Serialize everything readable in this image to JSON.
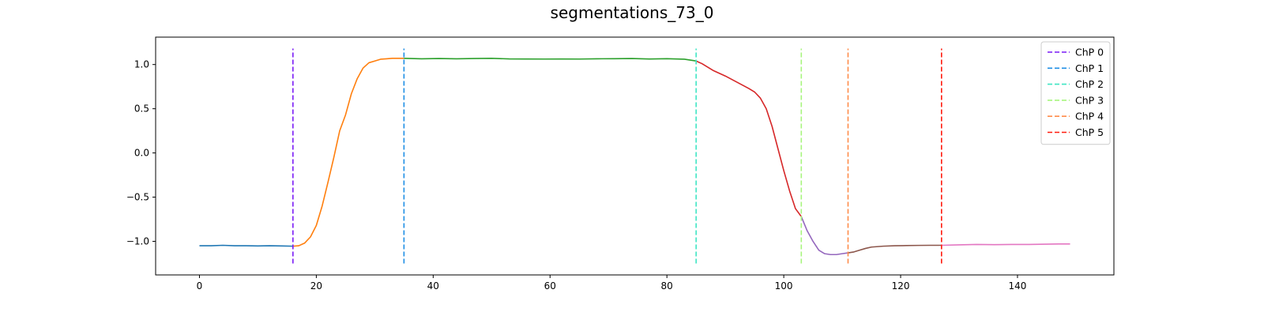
{
  "chart_data": {
    "type": "line",
    "title": "segmentations_73_0",
    "xlabel": "",
    "ylabel": "",
    "xlim": [
      -7.5,
      156.5
    ],
    "ylim": [
      -1.38,
      1.31
    ],
    "grid": false,
    "legend_position": "top-right",
    "x_ticks": [
      0,
      20,
      40,
      60,
      80,
      100,
      120,
      140
    ],
    "y_ticks": [
      -1.0,
      -0.5,
      0.0,
      0.5,
      1.0
    ],
    "y_tick_labels": [
      "−1.0",
      "−0.5",
      "0.0",
      "0.5",
      "1.0"
    ],
    "segments": [
      {
        "color": "#1f77b4",
        "points": [
          [
            0,
            -1.05
          ],
          [
            2,
            -1.05
          ],
          [
            4,
            -1.045
          ],
          [
            6,
            -1.05
          ],
          [
            8,
            -1.05
          ],
          [
            10,
            -1.052
          ],
          [
            12,
            -1.05
          ],
          [
            14,
            -1.052
          ],
          [
            16,
            -1.055
          ]
        ]
      },
      {
        "color": "#ff7f0e",
        "points": [
          [
            16,
            -1.055
          ],
          [
            17,
            -1.05
          ],
          [
            18,
            -1.02
          ],
          [
            19,
            -0.95
          ],
          [
            20,
            -0.82
          ],
          [
            21,
            -0.6
          ],
          [
            22,
            -0.33
          ],
          [
            23,
            -0.05
          ],
          [
            24,
            0.25
          ],
          [
            25,
            0.43
          ],
          [
            26,
            0.67
          ],
          [
            27,
            0.84
          ],
          [
            28,
            0.96
          ],
          [
            29,
            1.02
          ],
          [
            30,
            1.04
          ],
          [
            31,
            1.06
          ],
          [
            32,
            1.065
          ],
          [
            33,
            1.07
          ],
          [
            34,
            1.07
          ],
          [
            35,
            1.07
          ]
        ]
      },
      {
        "color": "#2ca02c",
        "points": [
          [
            35,
            1.07
          ],
          [
            38,
            1.065
          ],
          [
            41,
            1.068
          ],
          [
            44,
            1.065
          ],
          [
            47,
            1.068
          ],
          [
            50,
            1.07
          ],
          [
            53,
            1.064
          ],
          [
            56,
            1.063
          ],
          [
            59,
            1.062
          ],
          [
            62,
            1.063
          ],
          [
            65,
            1.062
          ],
          [
            68,
            1.065
          ],
          [
            71,
            1.066
          ],
          [
            74,
            1.068
          ],
          [
            77,
            1.063
          ],
          [
            80,
            1.066
          ],
          [
            83,
            1.06
          ],
          [
            85,
            1.04
          ]
        ]
      },
      {
        "color": "#d62728",
        "points": [
          [
            85,
            1.04
          ],
          [
            86,
            1.01
          ],
          [
            87,
            0.97
          ],
          [
            88,
            0.93
          ],
          [
            90,
            0.87
          ],
          [
            92,
            0.8
          ],
          [
            94,
            0.73
          ],
          [
            95,
            0.69
          ],
          [
            96,
            0.62
          ],
          [
            97,
            0.5
          ],
          [
            98,
            0.3
          ],
          [
            99,
            0.05
          ],
          [
            100,
            -0.2
          ],
          [
            101,
            -0.43
          ],
          [
            102,
            -0.63
          ],
          [
            103,
            -0.72
          ]
        ]
      },
      {
        "color": "#9467bd",
        "points": [
          [
            103,
            -0.72
          ],
          [
            104,
            -0.88
          ],
          [
            105,
            -1.0
          ],
          [
            106,
            -1.1
          ],
          [
            107,
            -1.14
          ],
          [
            108,
            -1.15
          ],
          [
            109,
            -1.15
          ],
          [
            110,
            -1.14
          ],
          [
            111,
            -1.13
          ]
        ]
      },
      {
        "color": "#8c564b",
        "points": [
          [
            111,
            -1.13
          ],
          [
            112,
            -1.12
          ],
          [
            113,
            -1.1
          ],
          [
            114,
            -1.08
          ],
          [
            115,
            -1.065
          ],
          [
            117,
            -1.055
          ],
          [
            119,
            -1.05
          ],
          [
            121,
            -1.048
          ],
          [
            123,
            -1.046
          ],
          [
            125,
            -1.045
          ],
          [
            127,
            -1.045
          ]
        ]
      },
      {
        "color": "#e377c2",
        "points": [
          [
            127,
            -1.045
          ],
          [
            130,
            -1.04
          ],
          [
            133,
            -1.035
          ],
          [
            136,
            -1.038
          ],
          [
            139,
            -1.035
          ],
          [
            142,
            -1.035
          ],
          [
            145,
            -1.032
          ],
          [
            147,
            -1.03
          ],
          [
            149,
            -1.03
          ]
        ]
      }
    ],
    "change_points": [
      {
        "label": "ChP 0",
        "x": 16,
        "color": "#7a1cf5"
      },
      {
        "label": "ChP 1",
        "x": 35,
        "color": "#1f8fe5"
      },
      {
        "label": "ChP 2",
        "x": 85,
        "color": "#3fe6c4"
      },
      {
        "label": "ChP 3",
        "x": 103,
        "color": "#a8f57e"
      },
      {
        "label": "ChP 4",
        "x": 111,
        "color": "#ff8c4a"
      },
      {
        "label": "ChP 5",
        "x": 127,
        "color": "#ff1a0d"
      }
    ],
    "change_point_y_range": [
      -1.25,
      1.18
    ]
  }
}
